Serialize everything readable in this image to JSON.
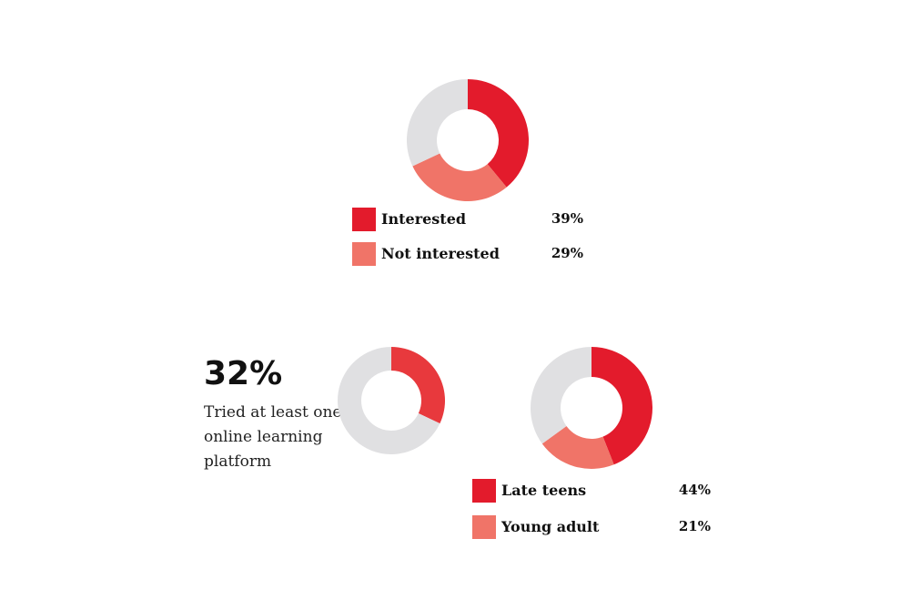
{
  "chart_data": [
    {
      "type": "pie",
      "style": "donut",
      "series": [
        {
          "name": "Interested",
          "value": 39,
          "color": "#e31b2c"
        },
        {
          "name": "Not interested",
          "value": 29,
          "color": "#f07468"
        },
        {
          "value": 32,
          "color": "#e0e0e2"
        }
      ],
      "legend": [
        {
          "label": "Interested",
          "value_label": "39%",
          "color": "#e31b2c"
        },
        {
          "label": "Not interested",
          "value_label": "29%",
          "color": "#f07468"
        }
      ]
    },
    {
      "type": "pie",
      "style": "donut",
      "headline": "32%",
      "caption": "Tried at least one online learning platform",
      "series": [
        {
          "value": 32,
          "color": "#e8393d"
        },
        {
          "value": 68,
          "color": "#e0e0e2"
        }
      ]
    },
    {
      "type": "pie",
      "style": "donut",
      "series": [
        {
          "name": "Late teens",
          "value": 44,
          "color": "#e31b2c"
        },
        {
          "name": "Young adult",
          "value": 21,
          "color": "#f07468"
        },
        {
          "value": 35,
          "color": "#e0e0e2"
        }
      ],
      "legend": [
        {
          "label": "Late teens",
          "value_label": "44%",
          "color": "#e31b2c"
        },
        {
          "label": "Young adult",
          "value_label": "21%",
          "color": "#f07468"
        }
      ]
    }
  ]
}
